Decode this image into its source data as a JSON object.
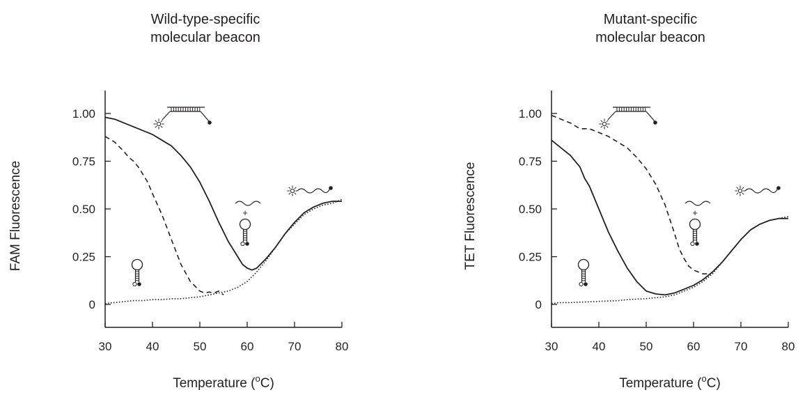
{
  "chart_data": [
    {
      "type": "line",
      "title": [
        "Wild-type-specific",
        "molecular beacon"
      ],
      "xlabel": "Temperature (",
      "xlabel_sup": "o",
      "xlabel_end": "C)",
      "ylabel": "FAM Fluorescence",
      "xlim": [
        30,
        80
      ],
      "ylim": [
        -0.12,
        1.12
      ],
      "xticks": [
        30,
        40,
        50,
        60,
        70,
        80
      ],
      "yticks": [
        0,
        0.25,
        0.5,
        0.75,
        1.0
      ],
      "ytick_labels": [
        "0",
        "0.25",
        "0.50",
        "0.75",
        "1.00"
      ],
      "grid": false,
      "icons": [
        "hybrid-beacon-icon",
        "unbound-beacon-icon",
        "random-coil-beacon-icon",
        "hairpin-beacon-icon"
      ],
      "series": [
        {
          "style": "solid",
          "x": [
            30,
            32,
            34,
            36,
            38,
            40,
            42,
            44,
            46,
            48,
            50,
            52,
            54,
            56,
            58,
            59,
            60,
            61,
            62,
            64,
            66,
            68,
            70,
            72,
            74,
            76,
            78,
            80
          ],
          "y": [
            0.98,
            0.97,
            0.95,
            0.93,
            0.91,
            0.89,
            0.86,
            0.83,
            0.78,
            0.72,
            0.64,
            0.54,
            0.43,
            0.33,
            0.25,
            0.21,
            0.19,
            0.18,
            0.19,
            0.24,
            0.3,
            0.37,
            0.43,
            0.48,
            0.51,
            0.53,
            0.54,
            0.54
          ]
        },
        {
          "style": "dashed",
          "x": [
            30,
            32,
            34,
            35,
            36,
            37,
            38,
            39,
            40,
            42,
            44,
            46,
            48,
            50,
            51,
            52,
            53,
            54,
            55
          ],
          "y": [
            0.88,
            0.85,
            0.8,
            0.77,
            0.75,
            0.72,
            0.68,
            0.64,
            0.58,
            0.47,
            0.34,
            0.21,
            0.12,
            0.07,
            0.06,
            0.065,
            0.06,
            0.07,
            0.05
          ]
        },
        {
          "style": "dotted",
          "x": [
            30,
            32,
            34,
            36,
            38,
            40,
            42,
            44,
            46,
            48,
            50,
            52,
            54,
            56,
            58,
            60,
            62,
            64,
            66,
            68,
            70,
            72,
            74,
            76,
            78,
            80
          ],
          "y": [
            0.005,
            0.01,
            0.015,
            0.02,
            0.02,
            0.025,
            0.025,
            0.03,
            0.03,
            0.035,
            0.04,
            0.05,
            0.06,
            0.07,
            0.09,
            0.12,
            0.17,
            0.23,
            0.3,
            0.37,
            0.42,
            0.47,
            0.5,
            0.52,
            0.53,
            0.55
          ]
        }
      ]
    },
    {
      "type": "line",
      "title": [
        "Mutant-specific",
        "molecular beacon"
      ],
      "xlabel": "Temperature (",
      "xlabel_sup": "o",
      "xlabel_end": "C)",
      "ylabel": "TET Fluorescence",
      "xlim": [
        30,
        80
      ],
      "ylim": [
        -0.12,
        1.12
      ],
      "xticks": [
        30,
        40,
        50,
        60,
        70,
        80
      ],
      "yticks": [
        0,
        0.25,
        0.5,
        0.75,
        1.0
      ],
      "ytick_labels": [
        "0",
        "0.25",
        "0.50",
        "0.75",
        "1.00"
      ],
      "grid": false,
      "icons": [
        "hybrid-beacon-icon",
        "unbound-beacon-icon",
        "random-coil-beacon-icon",
        "hairpin-beacon-icon"
      ],
      "series": [
        {
          "style": "solid",
          "x": [
            30,
            31,
            32,
            34,
            36,
            37,
            38,
            40,
            42,
            44,
            46,
            48,
            50,
            52,
            54,
            56,
            58,
            60,
            62,
            64,
            66,
            68,
            70,
            72,
            74,
            76,
            78,
            80
          ],
          "y": [
            0.86,
            0.84,
            0.82,
            0.78,
            0.72,
            0.66,
            0.62,
            0.5,
            0.38,
            0.28,
            0.19,
            0.12,
            0.07,
            0.055,
            0.05,
            0.06,
            0.08,
            0.1,
            0.13,
            0.17,
            0.22,
            0.28,
            0.34,
            0.39,
            0.42,
            0.44,
            0.45,
            0.45
          ]
        },
        {
          "style": "dashed",
          "x": [
            30,
            32,
            34,
            36,
            38,
            40,
            42,
            44,
            46,
            48,
            50,
            52,
            54,
            56,
            57,
            58,
            59,
            60,
            61,
            62,
            63
          ],
          "y": [
            0.99,
            0.97,
            0.95,
            0.92,
            0.92,
            0.9,
            0.88,
            0.85,
            0.82,
            0.77,
            0.71,
            0.63,
            0.52,
            0.37,
            0.29,
            0.24,
            0.2,
            0.18,
            0.17,
            0.16,
            0.16
          ]
        },
        {
          "style": "dotted",
          "x": [
            30,
            32,
            34,
            36,
            38,
            40,
            42,
            44,
            46,
            48,
            50,
            52,
            54,
            56,
            58,
            60,
            62,
            64,
            66,
            68,
            70,
            72,
            74,
            76,
            78,
            80
          ],
          "y": [
            0.005,
            0.01,
            0.01,
            0.012,
            0.014,
            0.016,
            0.018,
            0.02,
            0.025,
            0.028,
            0.03,
            0.035,
            0.04,
            0.05,
            0.07,
            0.09,
            0.12,
            0.16,
            0.22,
            0.28,
            0.34,
            0.39,
            0.42,
            0.44,
            0.45,
            0.46
          ]
        }
      ]
    }
  ]
}
